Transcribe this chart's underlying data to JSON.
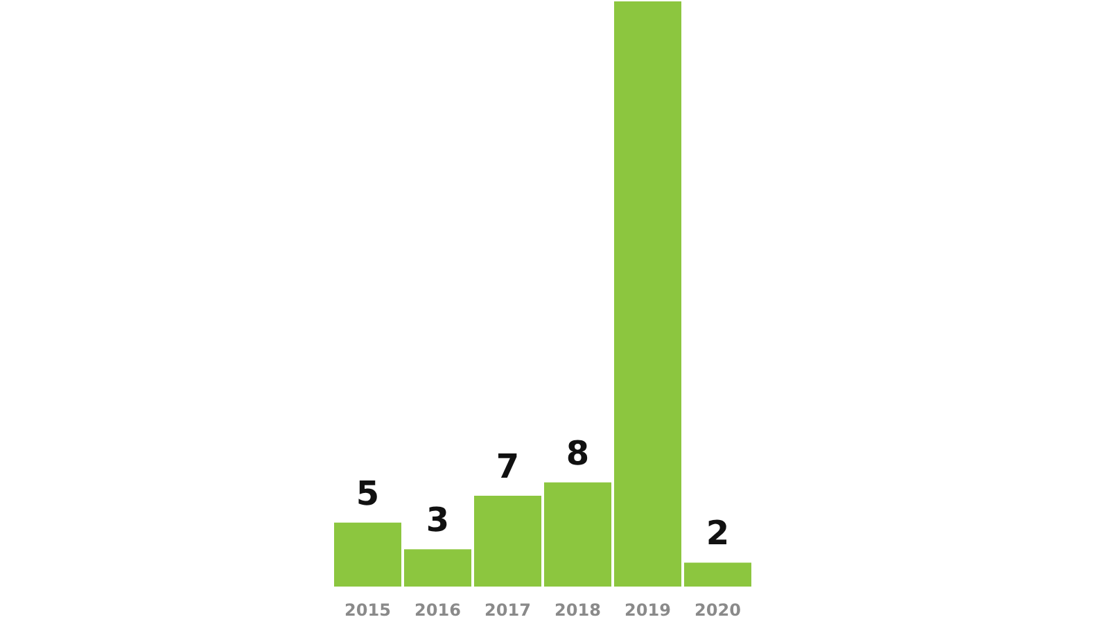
{
  "chart_data": {
    "type": "bar",
    "categories": [
      "2015",
      "2016",
      "2017",
      "2018",
      "2019",
      "2020"
    ],
    "values": [
      5,
      3,
      7,
      8,
      44,
      2
    ],
    "value_labels": [
      "5",
      "3",
      "7",
      "8",
      null,
      "2"
    ],
    "color": "#8cc63f",
    "grid": false
  }
}
